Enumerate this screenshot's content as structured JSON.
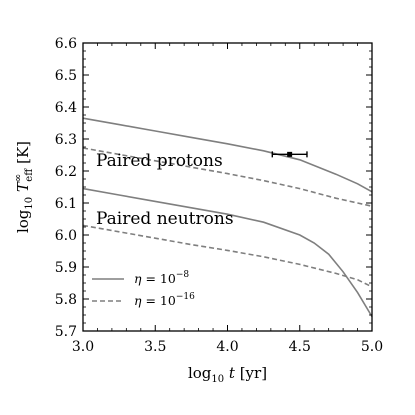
{
  "chart_data": {
    "type": "line",
    "xlabel": {
      "prefix": "log",
      "base": "10",
      "var": "t",
      "unit": "[yr]"
    },
    "ylabel": {
      "prefix": "log",
      "base": "10",
      "var": "T",
      "sup": "∞",
      "sub": "eff",
      "unit": "[K]"
    },
    "xlim": [
      3.0,
      5.0
    ],
    "ylim": [
      5.7,
      6.6
    ],
    "x_ticks": [
      3.0,
      3.5,
      4.0,
      4.5,
      5.0
    ],
    "x_tick_labels": [
      "3.0",
      "3.5",
      "4.0",
      "4.5",
      "5.0"
    ],
    "y_ticks": [
      5.7,
      5.8,
      5.9,
      6.0,
      6.1,
      6.2,
      6.3,
      6.4,
      6.5,
      6.6
    ],
    "y_tick_labels": [
      "5.7",
      "5.8",
      "5.9",
      "6.0",
      "6.1",
      "6.2",
      "6.3",
      "6.4",
      "6.5",
      "6.6"
    ],
    "grid": false,
    "legend_position": "bottom-left",
    "legend": [
      {
        "symbol": "η",
        "value": "10",
        "exp": "−8",
        "style": "solid",
        "color": "#7f7f7f"
      },
      {
        "symbol": "η",
        "value": "10",
        "exp": "−16",
        "style": "dashed",
        "color": "#7f7f7f"
      }
    ],
    "annotations": [
      {
        "text": "Paired protons",
        "x": 3.09,
        "y": 6.215
      },
      {
        "text": "Paired neutrons",
        "x": 3.09,
        "y": 6.035
      }
    ],
    "series": [
      {
        "group": "protons",
        "style": "solid",
        "color": "#7f7f7f",
        "x": [
          3.0,
          3.25,
          3.5,
          3.75,
          4.0,
          4.25,
          4.5,
          4.75,
          4.9,
          5.0
        ],
        "y": [
          6.365,
          6.345,
          6.325,
          6.305,
          6.285,
          6.263,
          6.235,
          6.19,
          6.16,
          6.135
        ]
      },
      {
        "group": "protons",
        "style": "dashed",
        "color": "#7f7f7f",
        "x": [
          3.0,
          3.25,
          3.5,
          3.75,
          4.0,
          4.25,
          4.5,
          4.75,
          4.9,
          5.0
        ],
        "y": [
          6.272,
          6.252,
          6.232,
          6.212,
          6.192,
          6.17,
          6.145,
          6.115,
          6.1,
          6.09
        ]
      },
      {
        "group": "neutrons",
        "style": "solid",
        "color": "#7f7f7f",
        "x": [
          3.0,
          3.25,
          3.5,
          3.75,
          4.0,
          4.25,
          4.5,
          4.6,
          4.7,
          4.8,
          4.9,
          5.0
        ],
        "y": [
          6.145,
          6.125,
          6.105,
          6.085,
          6.065,
          6.04,
          6.0,
          5.975,
          5.94,
          5.885,
          5.82,
          5.745
        ]
      },
      {
        "group": "neutrons",
        "style": "dashed",
        "color": "#7f7f7f",
        "x": [
          3.0,
          3.25,
          3.5,
          3.75,
          4.0,
          4.25,
          4.5,
          4.75,
          4.9,
          5.0
        ],
        "y": [
          6.03,
          6.01,
          5.99,
          5.97,
          5.952,
          5.932,
          5.908,
          5.88,
          5.86,
          5.838
        ]
      }
    ],
    "observation": {
      "x": 4.43,
      "y": 6.252,
      "x_err_low": 0.12,
      "x_err_high": 0.12,
      "y_err_low": 0.005,
      "y_err_high": 0.005,
      "color": "#000000"
    }
  }
}
